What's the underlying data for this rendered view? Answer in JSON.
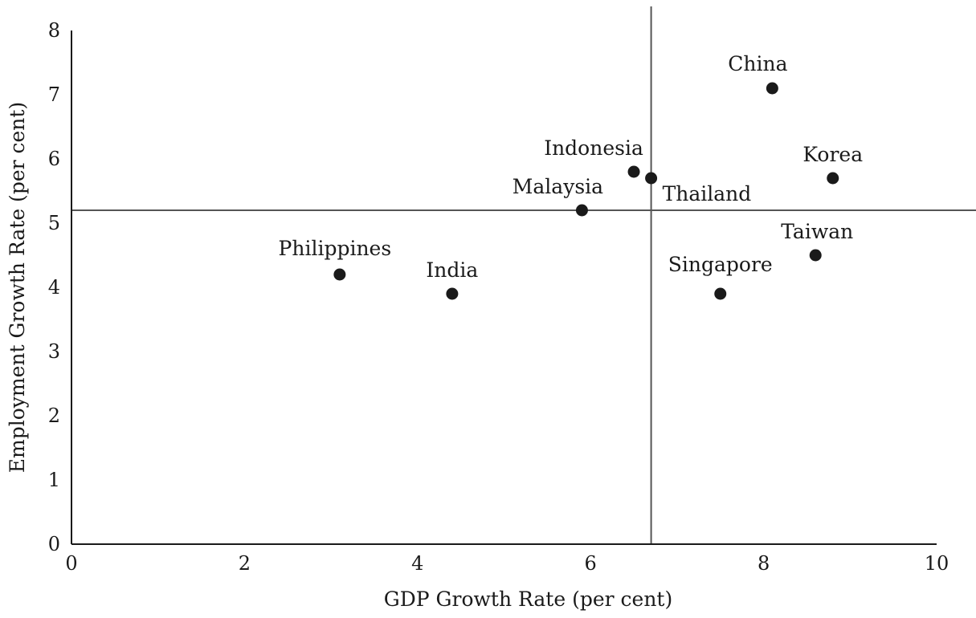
{
  "chart_data": {
    "type": "scatter",
    "title": "",
    "xlabel": "GDP Growth Rate (per cent)",
    "ylabel": "Employment Growth Rate (per cent)",
    "xlim": [
      0,
      10
    ],
    "ylim": [
      0,
      8
    ],
    "x_ticks": [
      0,
      2,
      4,
      6,
      8,
      10
    ],
    "y_ticks": [
      0,
      1,
      2,
      3,
      4,
      5,
      6,
      7,
      8
    ],
    "grid": false,
    "reference_lines": {
      "x": 6.7,
      "y": 5.2
    },
    "points": [
      {
        "label": "China",
        "x": 8.1,
        "y": 7.1
      },
      {
        "label": "Korea",
        "x": 8.8,
        "y": 5.7
      },
      {
        "label": "Indonesia",
        "x": 6.5,
        "y": 5.8
      },
      {
        "label": "Thailand",
        "x": 6.7,
        "y": 5.7
      },
      {
        "label": "Malaysia",
        "x": 5.9,
        "y": 5.2
      },
      {
        "label": "Taiwan",
        "x": 8.6,
        "y": 4.5
      },
      {
        "label": "Singapore",
        "x": 7.5,
        "y": 3.9
      },
      {
        "label": "Philippines",
        "x": 3.1,
        "y": 4.2
      },
      {
        "label": "India",
        "x": 4.4,
        "y": 3.9
      }
    ]
  }
}
